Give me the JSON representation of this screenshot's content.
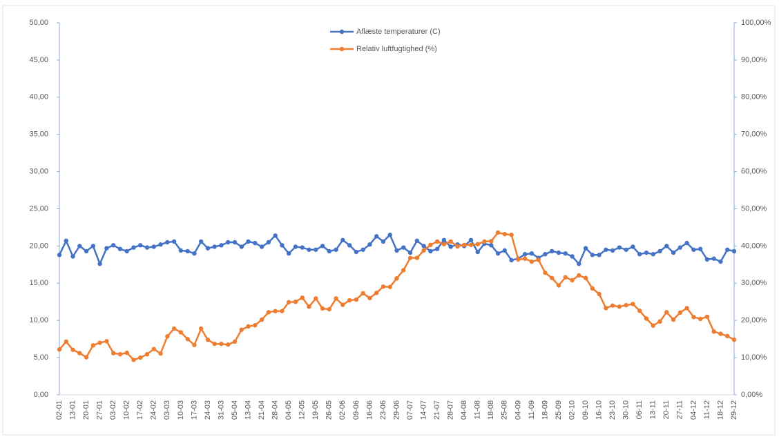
{
  "chart_data": {
    "type": "line",
    "categories": [
      "02-01",
      null,
      "13-01",
      null,
      "20-01",
      null,
      "27-01",
      null,
      "03-02",
      null,
      "10-02",
      null,
      "17-02",
      null,
      "24-02",
      null,
      "03-03",
      null,
      "10-03",
      null,
      "17-03",
      null,
      "24-03",
      null,
      "31-03",
      null,
      "05-04",
      null,
      "13-04",
      null,
      "21-04",
      null,
      "28-04",
      null,
      "04-05",
      null,
      "12-05",
      null,
      "19-05",
      null,
      "26-05",
      null,
      "02-06",
      null,
      "09-06",
      null,
      "16-06",
      null,
      "23-06",
      null,
      "29-06",
      null,
      "07-07",
      null,
      "14-07",
      null,
      "21-07",
      null,
      "28-07",
      null,
      "04-08",
      null,
      "11-08",
      null,
      "18-08",
      null,
      "25-08",
      null,
      "04-09",
      null,
      "11-09",
      null,
      "18-09",
      null,
      "25-09",
      null,
      "02-10",
      null,
      "09-10",
      null,
      "16-10",
      null,
      "23-10",
      null,
      "30-10",
      null,
      "06-11",
      null,
      "13-11",
      null,
      "20-11",
      null,
      "27-11",
      null,
      "04-12",
      null,
      "11-12",
      null,
      "18-12",
      null,
      "29-12"
    ],
    "series": [
      {
        "name": "Aflæste temperaturer (C)",
        "color": "#4472c4",
        "axis": "y",
        "values": [
          18.8,
          20.7,
          18.6,
          20.0,
          19.3,
          20.0,
          17.6,
          19.7,
          20.1,
          19.6,
          19.3,
          19.8,
          20.1,
          19.8,
          19.9,
          20.2,
          20.5,
          20.6,
          19.4,
          19.3,
          19.0,
          20.6,
          19.7,
          19.9,
          20.1,
          20.5,
          20.5,
          19.9,
          20.6,
          20.4,
          19.9,
          20.5,
          21.4,
          20.1,
          19.0,
          19.9,
          19.8,
          19.5,
          19.5,
          20.0,
          19.3,
          19.5,
          20.8,
          20.1,
          19.2,
          19.5,
          20.2,
          21.3,
          20.6,
          21.5,
          19.4,
          19.8,
          19.1,
          20.7,
          20.0,
          19.3,
          19.6,
          20.8,
          19.9,
          20.2,
          20.0,
          20.8,
          19.2,
          20.3,
          20.1,
          19.0,
          19.4,
          18.1,
          18.3,
          18.9,
          19.0,
          18.4,
          18.9,
          19.3,
          19.1,
          19.0,
          18.6,
          17.6,
          19.7,
          18.8,
          18.8,
          19.5,
          19.4,
          19.8,
          19.5,
          19.9,
          18.9,
          19.1,
          18.9,
          19.3,
          20.0,
          19.1,
          19.8,
          20.4,
          19.5,
          19.6,
          18.2,
          18.3,
          17.9,
          19.5,
          19.3
        ]
      },
      {
        "name": "Relativ luftfugtighed (%)",
        "color": "#ed7d31",
        "axis": "y2",
        "values": [
          12.2,
          14.3,
          12.1,
          11.2,
          10.1,
          13.3,
          14.0,
          14.4,
          11.2,
          10.9,
          11.3,
          9.4,
          10.0,
          10.9,
          12.3,
          11.1,
          15.7,
          17.8,
          16.8,
          15.0,
          13.4,
          17.8,
          14.8,
          13.7,
          13.7,
          13.5,
          14.3,
          17.5,
          18.4,
          18.7,
          20.2,
          22.2,
          22.5,
          22.5,
          24.9,
          25.0,
          26.1,
          23.7,
          25.9,
          23.2,
          23.0,
          25.9,
          24.2,
          25.4,
          25.6,
          27.3,
          26.0,
          27.4,
          29.1,
          29.0,
          31.3,
          33.5,
          36.8,
          36.8,
          38.8,
          40.3,
          41.2,
          40.5,
          41.2,
          39.9,
          40.3,
          40.3,
          40.5,
          41.2,
          41.3,
          43.6,
          43.2,
          43.0,
          36.4,
          36.6,
          35.8,
          36.3,
          32.8,
          31.4,
          29.4,
          31.6,
          30.8,
          32.1,
          31.4,
          28.6,
          27.1,
          23.3,
          24.0,
          23.7,
          24.1,
          24.4,
          22.6,
          20.5,
          18.6,
          19.7,
          22.2,
          20.2,
          22.1,
          23.3,
          20.9,
          20.4,
          21.0,
          17.0,
          16.4,
          15.8,
          14.8
        ]
      }
    ],
    "ylim": [
      0,
      50
    ],
    "yticks": [
      {
        "value": 0,
        "label": "0,00"
      },
      {
        "value": 5,
        "label": "5,00"
      },
      {
        "value": 10,
        "label": "10,00"
      },
      {
        "value": 15,
        "label": "15,00"
      },
      {
        "value": 20,
        "label": "20,00"
      },
      {
        "value": 25,
        "label": "25,00"
      },
      {
        "value": 30,
        "label": "30,00"
      },
      {
        "value": 35,
        "label": "35,00"
      },
      {
        "value": 40,
        "label": "40,00"
      },
      {
        "value": 45,
        "label": "45,00"
      },
      {
        "value": 50,
        "label": "50,00"
      }
    ],
    "y2lim": [
      0,
      100
    ],
    "y2ticks": [
      {
        "value": 0,
        "label": "0,00%"
      },
      {
        "value": 10,
        "label": "10,00%"
      },
      {
        "value": 20,
        "label": "20,00%"
      },
      {
        "value": 30,
        "label": "30,00%"
      },
      {
        "value": 40,
        "label": "40,00%"
      },
      {
        "value": 50,
        "label": "50,00%"
      },
      {
        "value": 60,
        "label": "60,00%"
      },
      {
        "value": 70,
        "label": "70,00%"
      },
      {
        "value": 80,
        "label": "80,00%"
      },
      {
        "value": 90,
        "label": "90,00%"
      },
      {
        "value": 100,
        "label": "100,00%"
      }
    ],
    "grid": false,
    "legend": "top"
  }
}
